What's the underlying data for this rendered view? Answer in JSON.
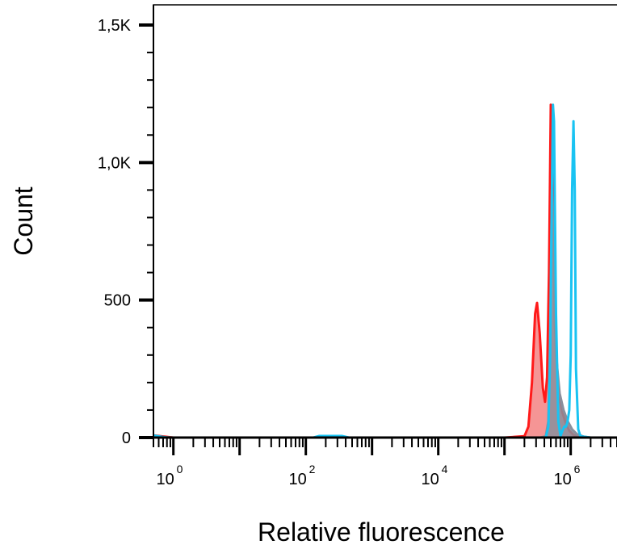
{
  "chart_data": {
    "type": "area",
    "title": "",
    "xlabel": "Relative fluorescence",
    "ylabel": "Count",
    "xscale": "log",
    "xlim": [
      0.5,
      5000000
    ],
    "ylim": [
      0,
      1550
    ],
    "x_tick_labels": [
      {
        "base": "10",
        "exp": "0",
        "value": 1
      },
      {
        "base": "10",
        "exp": "2",
        "value": 100
      },
      {
        "base": "10",
        "exp": "4",
        "value": 10000
      },
      {
        "base": "10",
        "exp": "6",
        "value": 1000000
      }
    ],
    "y_ticks": [
      {
        "label": "0",
        "value": 0
      },
      {
        "label": "500",
        "value": 500
      },
      {
        "label": "1,0K",
        "value": 1000
      },
      {
        "label": "1,5K",
        "value": 1500
      }
    ],
    "grid": false,
    "legend": "none",
    "series": [
      {
        "color": "#ff1a1a",
        "fill": "#f48a8a",
        "points": [
          [
            0.5,
            8
          ],
          [
            1,
            0
          ],
          [
            10,
            0
          ],
          [
            100,
            0
          ],
          [
            1000,
            0
          ],
          [
            10000,
            0
          ],
          [
            100000,
            0
          ],
          [
            200000,
            5
          ],
          [
            230000,
            40
          ],
          [
            260000,
            200
          ],
          [
            290000,
            450
          ],
          [
            310000,
            490
          ],
          [
            340000,
            380
          ],
          [
            380000,
            180
          ],
          [
            410000,
            130
          ],
          [
            440000,
            220
          ],
          [
            470000,
            600
          ],
          [
            500000,
            1210
          ],
          [
            530000,
            1000
          ],
          [
            580000,
            400
          ],
          [
            650000,
            170
          ],
          [
            750000,
            90
          ],
          [
            850000,
            50
          ],
          [
            950000,
            25
          ],
          [
            1100000,
            10
          ],
          [
            1300000,
            3
          ],
          [
            1800000,
            0
          ],
          [
            5000000,
            0
          ]
        ]
      },
      {
        "color": "#8a8f9c",
        "fill": "#8a8f9c",
        "points": [
          [
            0.5,
            4
          ],
          [
            1,
            0
          ],
          [
            100000,
            0
          ],
          [
            350000,
            0
          ],
          [
            420000,
            5
          ],
          [
            460000,
            60
          ],
          [
            490000,
            400
          ],
          [
            520000,
            900
          ],
          [
            550000,
            700
          ],
          [
            600000,
            300
          ],
          [
            680000,
            160
          ],
          [
            780000,
            100
          ],
          [
            900000,
            60
          ],
          [
            1050000,
            30
          ],
          [
            1250000,
            12
          ],
          [
            1600000,
            3
          ],
          [
            2000000,
            0
          ],
          [
            5000000,
            0
          ]
        ]
      },
      {
        "color": "#19c3f2",
        "fill": "none",
        "points": [
          [
            0.5,
            8
          ],
          [
            0.8,
            0
          ],
          [
            130,
            0
          ],
          [
            160,
            6
          ],
          [
            250,
            6
          ],
          [
            350,
            6
          ],
          [
            450,
            0
          ],
          [
            5000000,
            0
          ],
          [
            2000000,
            0
          ],
          [
            1400000,
            5
          ],
          [
            1300000,
            30
          ],
          [
            1200000,
            250
          ],
          [
            1150000,
            900
          ],
          [
            1100000,
            1150
          ],
          [
            1050000,
            900
          ],
          [
            1000000,
            300
          ],
          [
            950000,
            100
          ],
          [
            900000,
            60
          ],
          [
            850000,
            40
          ],
          [
            800000,
            40
          ],
          [
            750000,
            25
          ],
          [
            700000,
            5
          ],
          [
            650000,
            60
          ],
          [
            600000,
            450
          ],
          [
            560000,
            1150
          ],
          [
            540000,
            1210
          ],
          [
            520000,
            900
          ],
          [
            490000,
            300
          ],
          [
            460000,
            40
          ],
          [
            420000,
            0
          ],
          [
            100000,
            0
          ]
        ]
      }
    ]
  }
}
